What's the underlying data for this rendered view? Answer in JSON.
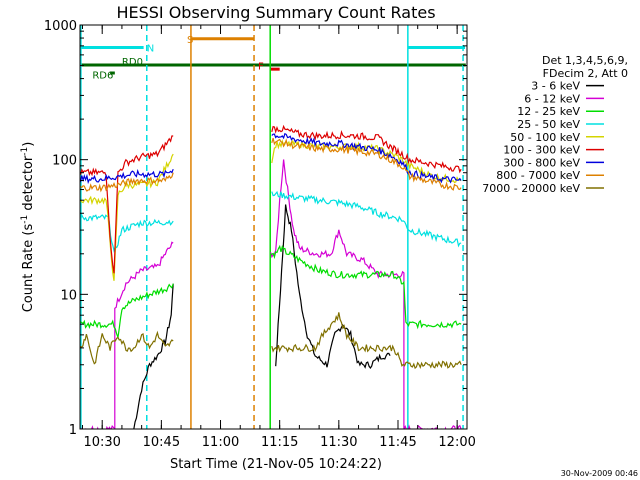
{
  "chart_data": {
    "type": "line",
    "title": "HESSI Observing Summary Count Rates",
    "xlabel": "Start Time (21-Nov-05 10:24:22)",
    "ylabel_main": "Count Rate (s",
    "ylabel_sup1": "-1",
    "ylabel_mid": " detector",
    "ylabel_sup2": "-1",
    "ylabel_end": ")",
    "y_scale": "log",
    "ylim": [
      1,
      1000
    ],
    "xlim_min": [
      24.37,
      122.5
    ],
    "x_ticks": [
      {
        "label": "10:30",
        "min": 30
      },
      {
        "label": "10:45",
        "min": 45
      },
      {
        "label": "11:00",
        "min": 60
      },
      {
        "label": "11:15",
        "min": 75
      },
      {
        "label": "11:30",
        "min": 90
      },
      {
        "label": "11:45",
        "min": 105
      },
      {
        "label": "12:00",
        "min": 120
      }
    ],
    "y_ticks": [
      {
        "label": "1",
        "v": 1
      },
      {
        "label": "10",
        "v": 10
      },
      {
        "label": "100",
        "v": 100
      },
      {
        "label": "1000",
        "v": 1000
      }
    ],
    "legend_header": [
      "Det 1,3,4,5,6,9,",
      "FDecim 2, Att 0"
    ],
    "legend_placement": "right",
    "footer_date": "30-Nov-2009 00:46",
    "series": [
      {
        "name": "3 - 6 keV",
        "color": "#000000",
        "segments": [
          [
            [
              38,
              1
            ],
            [
              40,
              2
            ],
            [
              42,
              3
            ],
            [
              44,
              3.5
            ],
            [
              46,
              4.5
            ],
            [
              47.5,
              7
            ],
            [
              48,
              12
            ]
          ],
          [
            [
              74,
              3
            ],
            [
              75.5,
              15
            ],
            [
              76.5,
              45
            ],
            [
              78,
              30
            ],
            [
              80,
              10
            ],
            [
              82,
              5
            ],
            [
              84,
              3.5
            ],
            [
              87,
              3
            ],
            [
              89,
              5
            ],
            [
              91,
              6
            ],
            [
              93,
              5
            ],
            [
              95,
              3
            ],
            [
              98,
              3
            ],
            [
              101,
              3.5
            ],
            [
              103,
              3.5
            ]
          ]
        ]
      },
      {
        "name": "6 - 12 keV",
        "color": "#d400d4",
        "segments": [
          [
            [
              24.5,
              1
            ],
            [
              33.2,
              1
            ],
            [
              33.2,
              8
            ],
            [
              36,
              12
            ],
            [
              40,
              15
            ],
            [
              44,
              16
            ],
            [
              46,
              20
            ],
            [
              48,
              24
            ]
          ],
          [
            [
              72.7,
              20
            ],
            [
              74,
              20
            ],
            [
              75,
              50
            ],
            [
              76,
              100
            ],
            [
              77,
              60
            ],
            [
              78.5,
              30
            ],
            [
              80,
              22
            ],
            [
              84,
              20
            ],
            [
              88,
              20
            ],
            [
              90,
              30
            ],
            [
              92,
              20
            ],
            [
              96,
              18
            ],
            [
              100,
              14
            ],
            [
              103,
              14
            ],
            [
              106.5,
              14
            ],
            [
              106.5,
              1
            ],
            [
              121,
              1
            ]
          ]
        ]
      },
      {
        "name": "12 - 25 keV",
        "color": "#00dd00",
        "segments": [
          [
            [
              24.5,
              6
            ],
            [
              30,
              6
            ],
            [
              33,
              6
            ],
            [
              34,
              5
            ],
            [
              35,
              8
            ],
            [
              38,
              9
            ],
            [
              42,
              10
            ],
            [
              46,
              11
            ],
            [
              48,
              12
            ]
          ],
          [
            [
              72.7,
              20
            ],
            [
              74,
              20
            ],
            [
              75,
              22
            ],
            [
              80,
              18
            ],
            [
              85,
              15
            ],
            [
              90,
              14
            ],
            [
              96,
              14
            ],
            [
              101,
              14
            ],
            [
              103,
              14
            ],
            [
              104,
              14
            ],
            [
              105,
              13
            ],
            [
              106.5,
              12
            ],
            [
              107,
              6
            ],
            [
              110,
              6
            ],
            [
              116,
              6
            ],
            [
              121,
              6
            ]
          ]
        ]
      },
      {
        "name": "25 - 50 keV",
        "color": "#00e0e0",
        "segments": [
          [
            [
              24.5,
              37
            ],
            [
              30,
              37
            ],
            [
              31.5,
              37
            ],
            [
              33,
              20
            ],
            [
              35,
              30
            ],
            [
              40,
              34
            ],
            [
              44,
              34
            ],
            [
              48,
              35
            ]
          ],
          [
            [
              73,
              55
            ],
            [
              75,
              55
            ],
            [
              80,
              52
            ],
            [
              85,
              50
            ],
            [
              90,
              48
            ],
            [
              95,
              45
            ],
            [
              100,
              40
            ],
            [
              103,
              38
            ],
            [
              106,
              36
            ],
            [
              108,
              30
            ],
            [
              112,
              28
            ],
            [
              116,
              26
            ],
            [
              121,
              24
            ]
          ]
        ]
      },
      {
        "name": "50 - 100 keV",
        "color": "#d4d400",
        "segments": [
          [
            [
              24.5,
              50
            ],
            [
              30,
              50
            ],
            [
              31,
              50
            ],
            [
              33,
              12
            ],
            [
              34,
              55
            ],
            [
              36,
              65
            ],
            [
              40,
              65
            ],
            [
              44,
              68
            ],
            [
              48,
              110
            ]
          ],
          [
            [
              73,
              100
            ],
            [
              74,
              130
            ],
            [
              80,
              130
            ],
            [
              85,
              125
            ],
            [
              90,
              125
            ],
            [
              95,
              125
            ],
            [
              100,
              120
            ],
            [
              105,
              105
            ],
            [
              108,
              90
            ],
            [
              114,
              75
            ],
            [
              121,
              70
            ]
          ]
        ]
      },
      {
        "name": "100 - 300 keV",
        "color": "#dd0000",
        "segments": [
          [
            [
              24.5,
              80
            ],
            [
              30,
              80
            ],
            [
              31,
              80
            ],
            [
              32.3,
              20
            ],
            [
              33,
              15
            ],
            [
              34,
              80
            ],
            [
              36,
              95
            ],
            [
              40,
              105
            ],
            [
              44,
              110
            ],
            [
              48,
              150
            ]
          ],
          [
            [
              73,
              170
            ],
            [
              75,
              170
            ],
            [
              80,
              155
            ],
            [
              85,
              150
            ],
            [
              90,
              152
            ],
            [
              95,
              150
            ],
            [
              100,
              145
            ],
            [
              103,
              125
            ],
            [
              106,
              110
            ],
            [
              108,
              100
            ],
            [
              112,
              95
            ],
            [
              116,
              90
            ],
            [
              121,
              85
            ]
          ]
        ]
      },
      {
        "name": "300 - 800 keV",
        "color": "#0000dd",
        "segments": [
          [
            [
              24.5,
              72
            ],
            [
              30,
              72
            ],
            [
              34,
              75
            ],
            [
              38,
              78
            ],
            [
              42,
              78
            ],
            [
              46,
              78
            ],
            [
              48,
              85
            ]
          ],
          [
            [
              73,
              155
            ],
            [
              75,
              150
            ],
            [
              80,
              140
            ],
            [
              85,
              132
            ],
            [
              90,
              132
            ],
            [
              95,
              125
            ],
            [
              100,
              118
            ],
            [
              103,
              108
            ],
            [
              106,
              95
            ],
            [
              108,
              80
            ],
            [
              112,
              75
            ],
            [
              116,
              72
            ],
            [
              121,
              70
            ]
          ]
        ]
      },
      {
        "name": "800 - 7000 keV",
        "color": "#dd8000",
        "segments": [
          [
            [
              24.5,
              62
            ],
            [
              30,
              62
            ],
            [
              34,
              65
            ],
            [
              38,
              70
            ],
            [
              42,
              70
            ],
            [
              46,
              70
            ],
            [
              48,
              80
            ]
          ],
          [
            [
              73,
              140
            ],
            [
              75,
              135
            ],
            [
              80,
              125
            ],
            [
              85,
              120
            ],
            [
              90,
              120
            ],
            [
              95,
              115
            ],
            [
              100,
              110
            ],
            [
              103,
              100
            ],
            [
              106,
              90
            ],
            [
              108,
              75
            ],
            [
              112,
              70
            ],
            [
              116,
              65
            ],
            [
              121,
              62
            ]
          ]
        ]
      },
      {
        "name": "7000 - 20000 keV",
        "color": "#807000",
        "segments": [
          [
            [
              24.5,
              4
            ],
            [
              26,
              5
            ],
            [
              28,
              3
            ],
            [
              30,
              5
            ],
            [
              32,
              4
            ],
            [
              34,
              5
            ],
            [
              36,
              4
            ],
            [
              38,
              4
            ],
            [
              40,
              5
            ],
            [
              42,
              4
            ],
            [
              44,
              5
            ],
            [
              46,
              4
            ],
            [
              48,
              4.5
            ]
          ],
          [
            [
              73,
              4
            ],
            [
              76,
              4
            ],
            [
              80,
              4
            ],
            [
              84,
              4
            ],
            [
              86,
              5
            ],
            [
              88,
              6
            ],
            [
              90,
              7
            ],
            [
              92,
              5
            ],
            [
              95,
              4
            ],
            [
              98,
              4
            ],
            [
              101,
              4
            ],
            [
              104,
              4
            ],
            [
              106,
              3
            ],
            [
              108,
              3
            ],
            [
              112,
              3
            ],
            [
              116,
              3
            ],
            [
              121,
              3
            ]
          ]
        ]
      }
    ],
    "annotations": [
      {
        "text": "N",
        "color": "#00e0e0",
        "x_min": 41.3,
        "y_val": 680
      },
      {
        "text": "S",
        "color": "#dd8000",
        "x_min": 51.5,
        "y_val": 790
      },
      {
        "text": "F",
        "color": "#dd0000",
        "x_min": 69.5,
        "y_val": 500
      },
      {
        "text": "RD0",
        "color": "#006600",
        "x_min": 35.0,
        "y_val": 540
      },
      {
        "text": "RD6",
        "color": "#006600",
        "x_min": 27.5,
        "y_val": 430
      }
    ],
    "flag_bars": [
      {
        "name": "night-bar",
        "color": "#00e0e0",
        "ranges": [
          [
            24.5,
            40.5
          ],
          [
            107.5,
            122
          ]
        ],
        "y_val": 680
      },
      {
        "name": "saa-bar",
        "color": "#dd8000",
        "ranges": [
          [
            52.5,
            68.5
          ]
        ],
        "y_val": 790
      },
      {
        "name": "flare-bar",
        "color": "#dd0000",
        "ranges": [
          [
            72.5,
            75
          ]
        ],
        "y_val": 470
      },
      {
        "name": "decimation-bar",
        "color": "#006600",
        "ranges": [
          [
            24.5,
            122.2
          ]
        ],
        "y_val": 505
      },
      {
        "name": "rd6-bar",
        "color": "#006600",
        "ranges": [
          [
            32,
            33.2
          ]
        ],
        "y_val": 440
      }
    ],
    "vertical_markers": [
      {
        "name": "night-start-line",
        "color": "#00e0e0",
        "x_min": 24.6,
        "dashed": false
      },
      {
        "name": "night-end-line",
        "color": "#00e0e0",
        "x_min": 41.3,
        "dashed": true
      },
      {
        "name": "saa-start-line",
        "color": "#dd8000",
        "x_min": 52.5,
        "dashed": false
      },
      {
        "name": "saa-end-line",
        "color": "#dd8000",
        "x_min": 68.5,
        "dashed": true
      },
      {
        "name": "night2-start-line",
        "color": "#00e0e0",
        "x_min": 107.5,
        "dashed": false
      },
      {
        "name": "night2-end-line",
        "color": "#00e0e0",
        "x_min": 121.5,
        "dashed": true
      },
      {
        "name": "gap-line",
        "color": "#00dd00",
        "x_min": 72.6,
        "dashed": false
      }
    ]
  }
}
